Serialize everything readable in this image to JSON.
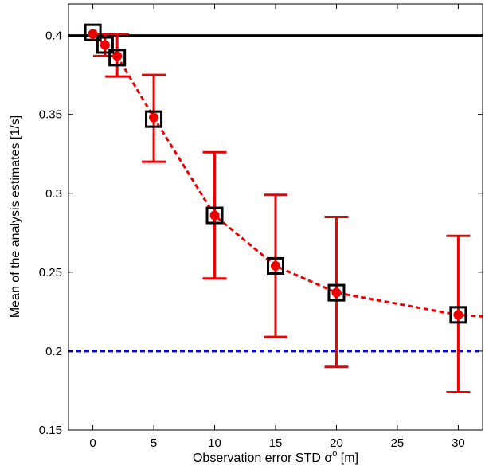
{
  "chart_data": {
    "type": "scatter",
    "xlabel": "Observation error STD σ",
    "xlabel_sup": "o",
    "xlabel_unit": " [m]",
    "ylabel": "Mean of the analysis estimates [1/s]",
    "xlim": [
      -2,
      32
    ],
    "ylim": [
      0.15,
      0.42
    ],
    "x_ticks": [
      0,
      5,
      10,
      15,
      20,
      25,
      30
    ],
    "x_tick_labels": [
      "0",
      "5",
      "10",
      "15",
      "20",
      "25",
      "30"
    ],
    "y_ticks": [
      0.15,
      0.2,
      0.25,
      0.3,
      0.35,
      0.4
    ],
    "y_tick_labels": [
      "0.15",
      "0.2",
      "0.25",
      "0.3",
      "0.35",
      "0.4"
    ],
    "grid": false,
    "reference_lines": [
      {
        "y": 0.4,
        "color": "#000000",
        "style": "solid"
      },
      {
        "y": 0.2,
        "color": "#0000ee",
        "style": "dotted"
      }
    ],
    "series": [
      {
        "type": "line",
        "style": "dotted",
        "color": "#ee0000",
        "x": [
          0,
          1,
          2,
          5,
          10,
          15,
          20,
          30,
          32
        ],
        "y": [
          0.401,
          0.394,
          0.387,
          0.348,
          0.286,
          0.254,
          0.237,
          0.223,
          0.222
        ]
      },
      {
        "type": "errorbar",
        "color": "#ee0000",
        "x": [
          0,
          1,
          2,
          5,
          10,
          15,
          20,
          30
        ],
        "y": [
          0.401,
          0.394,
          0.387,
          0.348,
          0.286,
          0.254,
          0.237,
          0.223
        ],
        "lower": [
          0.401,
          0.387,
          0.374,
          0.32,
          0.246,
          0.209,
          0.19,
          0.174
        ],
        "upper": [
          0.401,
          0.401,
          0.401,
          0.375,
          0.326,
          0.299,
          0.285,
          0.273
        ]
      },
      {
        "type": "markers",
        "marker": "filled-circle",
        "color": "#ee0000",
        "x": [
          0,
          1,
          2,
          5,
          10,
          15,
          20,
          30
        ],
        "y": [
          0.401,
          0.394,
          0.387,
          0.348,
          0.286,
          0.254,
          0.237,
          0.223
        ]
      },
      {
        "type": "markers",
        "marker": "open-square",
        "color": "#000000",
        "x": [
          0,
          1,
          2,
          5,
          10,
          15,
          20,
          30
        ],
        "y": [
          0.402,
          0.394,
          0.386,
          0.347,
          0.286,
          0.254,
          0.237,
          0.223
        ]
      }
    ]
  }
}
